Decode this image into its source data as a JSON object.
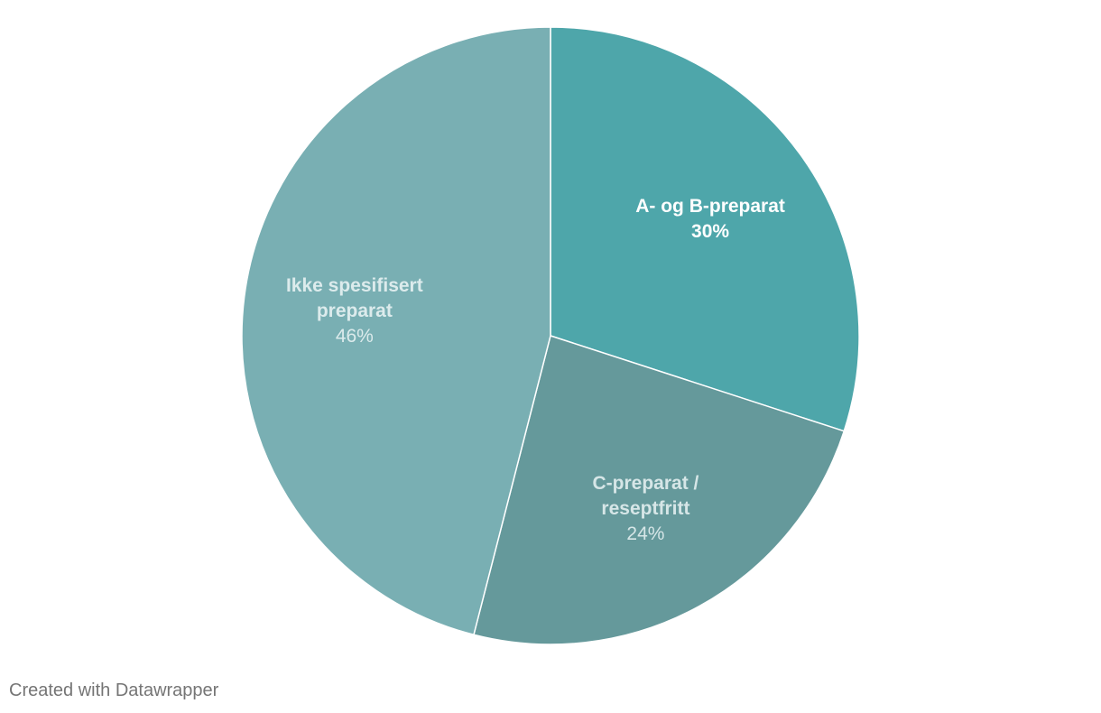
{
  "chart_data": {
    "type": "pie",
    "title": "",
    "slices": [
      {
        "label": "A- og B-preparat",
        "label_lines": [
          "A- og B-preparat"
        ],
        "value": 30,
        "value_label": "30%",
        "color": "#4ea6aa",
        "text_color": "#ffffff",
        "value_bold": true
      },
      {
        "label": "C-preparat / reseptfritt",
        "label_lines": [
          "C-preparat /",
          "reseptfritt"
        ],
        "value": 24,
        "value_label": "24%",
        "color": "#65999b",
        "text_color": "#d6e6e7",
        "value_bold": false
      },
      {
        "label": "Ikke spesifisert preparat",
        "label_lines": [
          "Ikke spesifisert",
          "preparat"
        ],
        "value": 46,
        "value_label": "46%",
        "color": "#79afb3",
        "text_color": "#dcebec",
        "value_bold": false
      }
    ],
    "start_angle": "12 o'clock",
    "direction": "clockwise",
    "stroke_color": "#ffffff"
  },
  "footer": {
    "credit": "Created with Datawrapper"
  }
}
